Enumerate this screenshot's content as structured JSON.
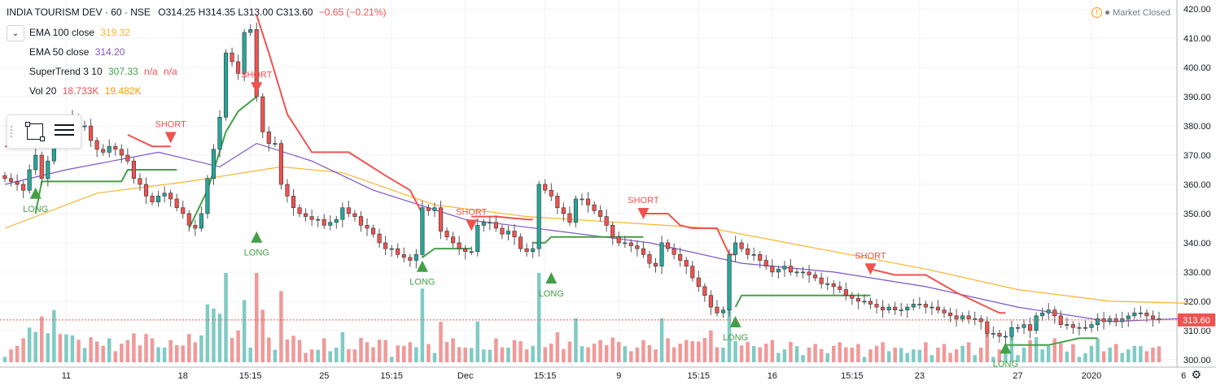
{
  "header": {
    "title": "INDIA TOURISM DEV · 60 · NSE",
    "ohlc": "O314.25 H314.35 L313.00 C313.60",
    "change": "−0.65 (−0.21%)"
  },
  "market_status": "Market Closed",
  "indicators": [
    {
      "label": "EMA 100 close",
      "values": [
        "319.32"
      ],
      "colors": [
        "#f7b530"
      ]
    },
    {
      "label": "EMA 50 close",
      "values": [
        "314.20"
      ],
      "colors": [
        "#7e57c2"
      ]
    },
    {
      "label": "SuperTrend 3 10",
      "values": [
        "307.33",
        "n/a",
        "n/a"
      ],
      "colors": [
        "#43a047",
        "#ef5350",
        "#ef5350"
      ]
    },
    {
      "label": "Vol 20",
      "values": [
        "18.733K",
        "19.482K"
      ],
      "colors": [
        "#ef5350",
        "#ff9800"
      ]
    }
  ],
  "price_label": "313.60",
  "colors": {
    "up": "#26a69a",
    "down": "#ef5350",
    "st_up": "#43a047",
    "st_down": "#ef5350",
    "ema100": "#f7b530",
    "ema50": "#7e57c2",
    "vol_up": "#80cbc4",
    "vol_down": "#ef9a9a",
    "grid": "#f0f3fa"
  },
  "chart_data": {
    "type": "candlestick",
    "title": "INDIA TOURISM DEV · 60 · NSE",
    "ylim": [
      298,
      422
    ],
    "y_ticks": [
      300,
      310,
      320,
      330,
      340,
      350,
      360,
      370,
      380,
      390,
      400,
      410,
      420
    ],
    "x_ticks": [
      {
        "index": 10,
        "label": "11"
      },
      {
        "index": 29,
        "label": "18"
      },
      {
        "index": 40,
        "label": "15:15"
      },
      {
        "index": 52,
        "label": "25"
      },
      {
        "index": 63,
        "label": "15:15"
      },
      {
        "index": 75,
        "label": "Dec"
      },
      {
        "index": 88,
        "label": "15:15"
      },
      {
        "index": 100,
        "label": "9"
      },
      {
        "index": 113,
        "label": "15:15"
      },
      {
        "index": 125,
        "label": "16"
      },
      {
        "index": 138,
        "label": "15:15"
      },
      {
        "index": 149,
        "label": "23"
      },
      {
        "index": 165,
        "label": "27"
      },
      {
        "index": 177,
        "label": "2020"
      },
      {
        "index": 192,
        "label": "6"
      }
    ],
    "closes": [
      362,
      361,
      360,
      358,
      365,
      370,
      362,
      368,
      379,
      375,
      378,
      383,
      380,
      380,
      375,
      372,
      371,
      373,
      372,
      370,
      368,
      362,
      360,
      356,
      354,
      356,
      357,
      355,
      352,
      350,
      346,
      345,
      350,
      362,
      372,
      383,
      405,
      402,
      398,
      412,
      413,
      390,
      378,
      374,
      374,
      360,
      356,
      352,
      350,
      349,
      348,
      348,
      346,
      347,
      348,
      352,
      350,
      349,
      346,
      345,
      343,
      340,
      338,
      338,
      336,
      335,
      334,
      336,
      352,
      351,
      352,
      344,
      342,
      340,
      338,
      337,
      337,
      346,
      347,
      347,
      345,
      343,
      344,
      342,
      338,
      337,
      338,
      360,
      358,
      356,
      352,
      350,
      347,
      355,
      355,
      353,
      351,
      349,
      346,
      342,
      340,
      340,
      339,
      338,
      336,
      333,
      332,
      340,
      338,
      336,
      334,
      332,
      328,
      325,
      322,
      318,
      316,
      317,
      336,
      340,
      338,
      336,
      336,
      334,
      332,
      330,
      331,
      332,
      330,
      330,
      330,
      329,
      328,
      326,
      326,
      325,
      324,
      322,
      321,
      320,
      320,
      319,
      318,
      317,
      318,
      317,
      317,
      318,
      319,
      319,
      318,
      318,
      317,
      316,
      315,
      314,
      315,
      314,
      314,
      313,
      309,
      309,
      308,
      308,
      311,
      311,
      312,
      310,
      315,
      316,
      317,
      315,
      312,
      312,
      311,
      311,
      311,
      312,
      314,
      313,
      314,
      313,
      314,
      315,
      316,
      316,
      315,
      314,
      313.6
    ],
    "lows_highs_note": "wicks estimated from candle body ± small range",
    "volume_scale_max": 50,
    "ema50_nodes": [
      [
        0,
        360
      ],
      [
        10,
        365
      ],
      [
        25,
        371
      ],
      [
        35,
        366
      ],
      [
        41,
        374
      ],
      [
        50,
        368
      ],
      [
        60,
        358
      ],
      [
        75,
        348
      ],
      [
        90,
        344
      ],
      [
        105,
        340
      ],
      [
        120,
        333
      ],
      [
        135,
        330
      ],
      [
        150,
        325
      ],
      [
        165,
        318
      ],
      [
        180,
        313
      ],
      [
        193,
        314.2
      ]
    ],
    "ema100_nodes": [
      [
        0,
        345
      ],
      [
        15,
        357
      ],
      [
        30,
        361
      ],
      [
        45,
        366
      ],
      [
        55,
        364
      ],
      [
        70,
        353
      ],
      [
        85,
        349
      ],
      [
        100,
        347
      ],
      [
        115,
        345
      ],
      [
        135,
        337
      ],
      [
        150,
        331
      ],
      [
        165,
        324
      ],
      [
        180,
        320
      ],
      [
        193,
        319.3
      ]
    ],
    "supertrend_segments": [
      {
        "trend": "down",
        "points": [
          [
            0,
            373
          ],
          [
            5,
            373
          ]
        ]
      },
      {
        "trend": "up",
        "points": [
          [
            5,
            350
          ],
          [
            6,
            361
          ],
          [
            10,
            361
          ],
          [
            11,
            361
          ],
          [
            19,
            361
          ],
          [
            20,
            365
          ],
          [
            27,
            365
          ],
          [
            28,
            365
          ]
        ]
      },
      {
        "trend": "down",
        "points": [
          [
            20,
            377
          ],
          [
            24,
            373
          ],
          [
            27,
            373
          ]
        ]
      },
      {
        "trend": "up",
        "points": [
          [
            30,
            345
          ],
          [
            33,
            358
          ],
          [
            36,
            378
          ],
          [
            38,
            385
          ],
          [
            41,
            390
          ]
        ]
      },
      {
        "trend": "down",
        "points": [
          [
            41,
            418
          ],
          [
            43,
            405
          ],
          [
            46,
            384
          ],
          [
            50,
            371
          ],
          [
            56,
            371
          ],
          [
            62,
            363
          ],
          [
            66,
            358
          ],
          [
            68,
            350
          ]
        ]
      },
      {
        "trend": "up",
        "points": [
          [
            68,
            335
          ],
          [
            70,
            338
          ],
          [
            75,
            338
          ],
          [
            76,
            338
          ]
        ]
      },
      {
        "trend": "down",
        "points": [
          [
            76,
            349
          ],
          [
            80,
            349
          ],
          [
            85,
            348
          ],
          [
            86,
            348
          ]
        ]
      },
      {
        "trend": "up",
        "points": [
          [
            86,
            340
          ],
          [
            88,
            340
          ],
          [
            89,
            342
          ],
          [
            100,
            342
          ],
          [
            104,
            342
          ]
        ]
      },
      {
        "trend": "down",
        "points": [
          [
            104,
            350
          ],
          [
            108,
            350
          ],
          [
            110,
            346
          ],
          [
            112,
            345
          ],
          [
            116,
            345
          ],
          [
            118,
            336
          ],
          [
            119,
            336
          ]
        ]
      },
      {
        "trend": "up",
        "points": [
          [
            119,
            318
          ],
          [
            120,
            322
          ],
          [
            140,
            322
          ],
          [
            141,
            322
          ]
        ]
      },
      {
        "trend": "down",
        "points": [
          [
            141,
            331
          ],
          [
            145,
            329
          ],
          [
            150,
            329
          ],
          [
            155,
            323
          ],
          [
            160,
            318
          ],
          [
            162,
            316
          ],
          [
            163,
            316
          ]
        ]
      },
      {
        "trend": "up",
        "points": [
          [
            163,
            305
          ],
          [
            170,
            305
          ],
          [
            175,
            307.33
          ],
          [
            178,
            307.33
          ]
        ]
      }
    ],
    "signals": [
      {
        "index": 5,
        "type": "long",
        "label": "LONG",
        "price": 357
      },
      {
        "index": 27,
        "type": "short",
        "label": "SHORT",
        "price": 376
      },
      {
        "index": 41,
        "type": "long",
        "label": "LONG",
        "price": 342
      },
      {
        "index": 41,
        "type": "short",
        "label": "SHORT",
        "price": 393
      },
      {
        "index": 68,
        "type": "long",
        "label": "LONG",
        "price": 332
      },
      {
        "index": 76,
        "type": "short",
        "label": "SHORT",
        "price": 346
      },
      {
        "index": 89,
        "type": "long",
        "label": "LONG",
        "price": 328
      },
      {
        "index": 104,
        "type": "short",
        "label": "SHORT",
        "price": 350
      },
      {
        "index": 119,
        "type": "long",
        "label": "LONG",
        "price": 313
      },
      {
        "index": 141,
        "type": "short",
        "label": "SHORT",
        "price": 331
      },
      {
        "index": 163,
        "type": "long",
        "label": "LONG",
        "price": 304
      }
    ]
  }
}
